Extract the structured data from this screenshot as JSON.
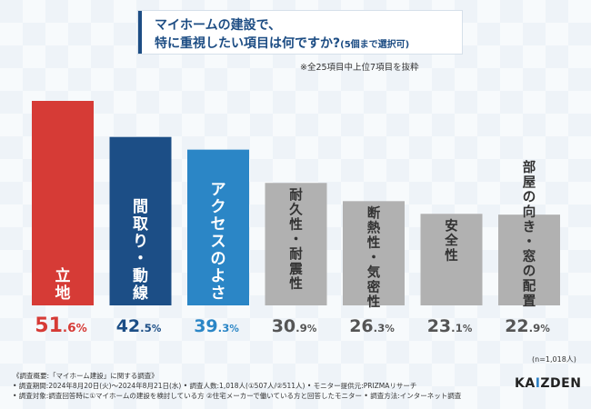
{
  "title": {
    "line1": "マイホームの建設で、",
    "line2": "特に重視したい項目は何ですか?",
    "line2_suffix": "(5個まで選択可)"
  },
  "note": "※全25項目中上位7項目を抜粋",
  "chart_data": {
    "type": "bar",
    "title": "マイホームの建設で、特に重視したい項目は何ですか?(5個まで選択可)",
    "categories": [
      "立地",
      "間取り・動線",
      "アクセスのよさ",
      "耐久性・耐震性",
      "断熱性・気密性",
      "安全性",
      "部屋の向き・窓の配置"
    ],
    "values": [
      51.6,
      42.5,
      39.3,
      30.9,
      26.3,
      23.1,
      22.9
    ],
    "value_labels": [
      {
        "int": "51",
        "dec": ".6",
        "pct": "%"
      },
      {
        "int": "42",
        "dec": ".5",
        "pct": "%"
      },
      {
        "int": "39",
        "dec": ".3",
        "pct": "%"
      },
      {
        "int": "30",
        "dec": ".9",
        "pct": "%"
      },
      {
        "int": "26",
        "dec": ".3",
        "pct": "%"
      },
      {
        "int": "23",
        "dec": ".1",
        "pct": "%"
      },
      {
        "int": "22",
        "dec": ".9",
        "pct": "%"
      }
    ],
    "colors": [
      "#d63b36",
      "#1c4e86",
      "#2b86c6",
      "#b1b1b1",
      "#b1b1b1",
      "#b1b1b1",
      "#b1b1b1"
    ],
    "label_colors": [
      "#d63b36",
      "#1c4e86",
      "#2b86c6",
      "#555555",
      "#555555",
      "#555555",
      "#555555"
    ],
    "ylim": [
      0,
      60
    ],
    "xlabel": "",
    "ylabel": "",
    "grid": false
  },
  "sample_size": "(n=1,018人)",
  "footer": {
    "line1": "《調査概要:「マイホーム建設」に関する調査》",
    "line2": "• 調査期間:2024年8月20日(火)〜2024年8月21日(水)  • 調査人数:1,018人(①507人/②511人)  • モニター提供元:PRIZMAリサーチ",
    "line3": "• 調査対象:調査回答時に①マイホームの建設を検討している方 ②住宅メーカーで働いている方と回答したモニター  • 調査方法:インターネット調査"
  },
  "brand": {
    "pre": "KA",
    "mark": "I",
    "post": "ZDEN"
  }
}
